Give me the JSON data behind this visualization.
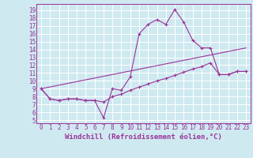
{
  "background_color": "#cfe9f0",
  "grid_color": "#ffffff",
  "line_color": "#993399",
  "xlabel": "Windchill (Refroidissement éolien,°C)",
  "ylabel_ticks": [
    5,
    6,
    7,
    8,
    9,
    10,
    11,
    12,
    13,
    14,
    15,
    16,
    17,
    18,
    19
  ],
  "xticks": [
    0,
    1,
    2,
    3,
    4,
    5,
    6,
    7,
    8,
    9,
    10,
    11,
    12,
    13,
    14,
    15,
    16,
    17,
    18,
    19,
    20,
    21,
    22,
    23
  ],
  "xlim": [
    -0.5,
    23.5
  ],
  "ylim": [
    4.6,
    19.8
  ],
  "line1_x": [
    0,
    1,
    2,
    3,
    4,
    5,
    6,
    7,
    8,
    9,
    10,
    11,
    12,
    13,
    14,
    15,
    16,
    17,
    18,
    19,
    20,
    21,
    22,
    23
  ],
  "line1_y": [
    9.0,
    7.7,
    7.5,
    7.7,
    7.7,
    7.5,
    7.5,
    5.3,
    9.0,
    8.8,
    10.5,
    16.0,
    17.2,
    17.8,
    17.2,
    19.1,
    17.5,
    15.2,
    14.2,
    14.2,
    10.8,
    10.8,
    11.2,
    11.2
  ],
  "line2_x": [
    0,
    1,
    2,
    3,
    4,
    5,
    6,
    7,
    8,
    9,
    10,
    11,
    12,
    13,
    14,
    15,
    16,
    17,
    18,
    19,
    20,
    21,
    22,
    23
  ],
  "line2_y": [
    9.0,
    7.7,
    7.5,
    7.7,
    7.7,
    7.5,
    7.5,
    7.3,
    8.0,
    8.3,
    8.8,
    9.2,
    9.6,
    10.0,
    10.3,
    10.7,
    11.1,
    11.5,
    11.8,
    12.3,
    10.8,
    10.8,
    11.2,
    11.2
  ],
  "line3_x": [
    0,
    23
  ],
  "line3_y": [
    9.0,
    14.2
  ],
  "font_size_ticks": 5.5,
  "font_size_label": 6.5
}
